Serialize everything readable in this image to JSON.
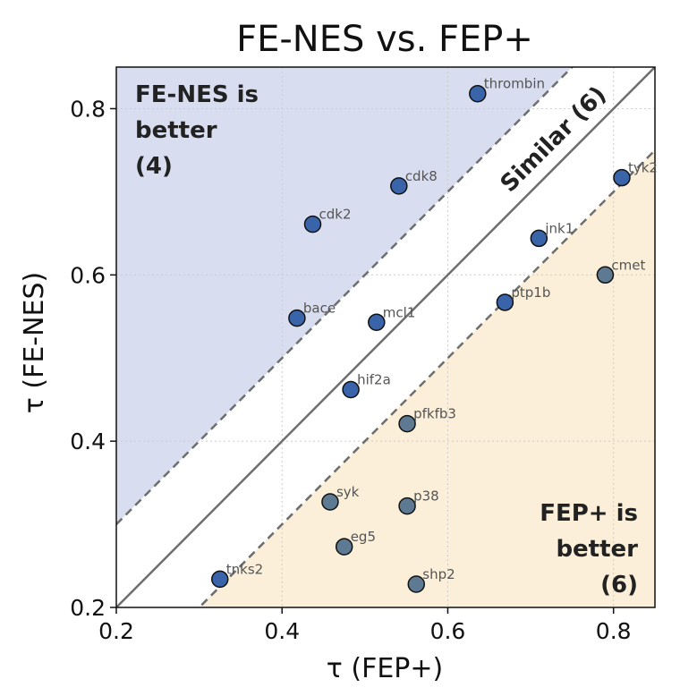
{
  "chart_data": {
    "type": "scatter",
    "title": "FE-NES vs. FEP+",
    "xlabel": "τ (FEP+)",
    "ylabel": "τ (FE-NES)",
    "xlim": [
      0.2,
      0.85
    ],
    "ylim": [
      0.2,
      0.85
    ],
    "xticks": [
      0.2,
      0.4,
      0.6,
      0.8
    ],
    "yticks": [
      0.2,
      0.4,
      0.6,
      0.8
    ],
    "tick_labels": [
      "0.2",
      "0.4",
      "0.6",
      "0.8"
    ],
    "grid": true,
    "region_labels": {
      "upper": [
        "FE-NES is",
        "better",
        "(4)"
      ],
      "lower": [
        "FEP+ is",
        "better",
        "(6)"
      ],
      "diagonal": "Similar (6)"
    },
    "colors": {
      "upper_region": "#d9ddf0",
      "lower_region": "#fbefd9",
      "upper_points": "#3a64a9",
      "similar_points": "#3a64a9",
      "lower_points": "#5d7a92",
      "diagonal": "#6e6e6e"
    },
    "reference_lines": [
      {
        "type": "solid",
        "offset": 0.0
      },
      {
        "type": "dashed",
        "offset": 0.1
      },
      {
        "type": "dashed",
        "offset": -0.1
      }
    ],
    "points": [
      {
        "name": "thrombin",
        "x": 0.636,
        "y": 0.818,
        "group": "upper"
      },
      {
        "name": "cdk8",
        "x": 0.541,
        "y": 0.707,
        "group": "upper"
      },
      {
        "name": "cdk2",
        "x": 0.437,
        "y": 0.661,
        "group": "upper"
      },
      {
        "name": "bace",
        "x": 0.418,
        "y": 0.548,
        "group": "upper"
      },
      {
        "name": "tyk2",
        "x": 0.81,
        "y": 0.717,
        "group": "similar"
      },
      {
        "name": "jnk1",
        "x": 0.71,
        "y": 0.644,
        "group": "similar"
      },
      {
        "name": "ptp1b",
        "x": 0.669,
        "y": 0.567,
        "group": "similar"
      },
      {
        "name": "mcl1",
        "x": 0.514,
        "y": 0.543,
        "group": "similar"
      },
      {
        "name": "hif2a",
        "x": 0.483,
        "y": 0.462,
        "group": "similar"
      },
      {
        "name": "tnks2",
        "x": 0.325,
        "y": 0.234,
        "group": "similar"
      },
      {
        "name": "cmet",
        "x": 0.79,
        "y": 0.6,
        "group": "lower"
      },
      {
        "name": "pfkfb3",
        "x": 0.551,
        "y": 0.421,
        "group": "lower"
      },
      {
        "name": "syk",
        "x": 0.458,
        "y": 0.327,
        "group": "lower"
      },
      {
        "name": "p38",
        "x": 0.551,
        "y": 0.322,
        "group": "lower"
      },
      {
        "name": "eg5",
        "x": 0.475,
        "y": 0.273,
        "group": "lower"
      },
      {
        "name": "shp2",
        "x": 0.562,
        "y": 0.228,
        "group": "lower"
      }
    ]
  }
}
